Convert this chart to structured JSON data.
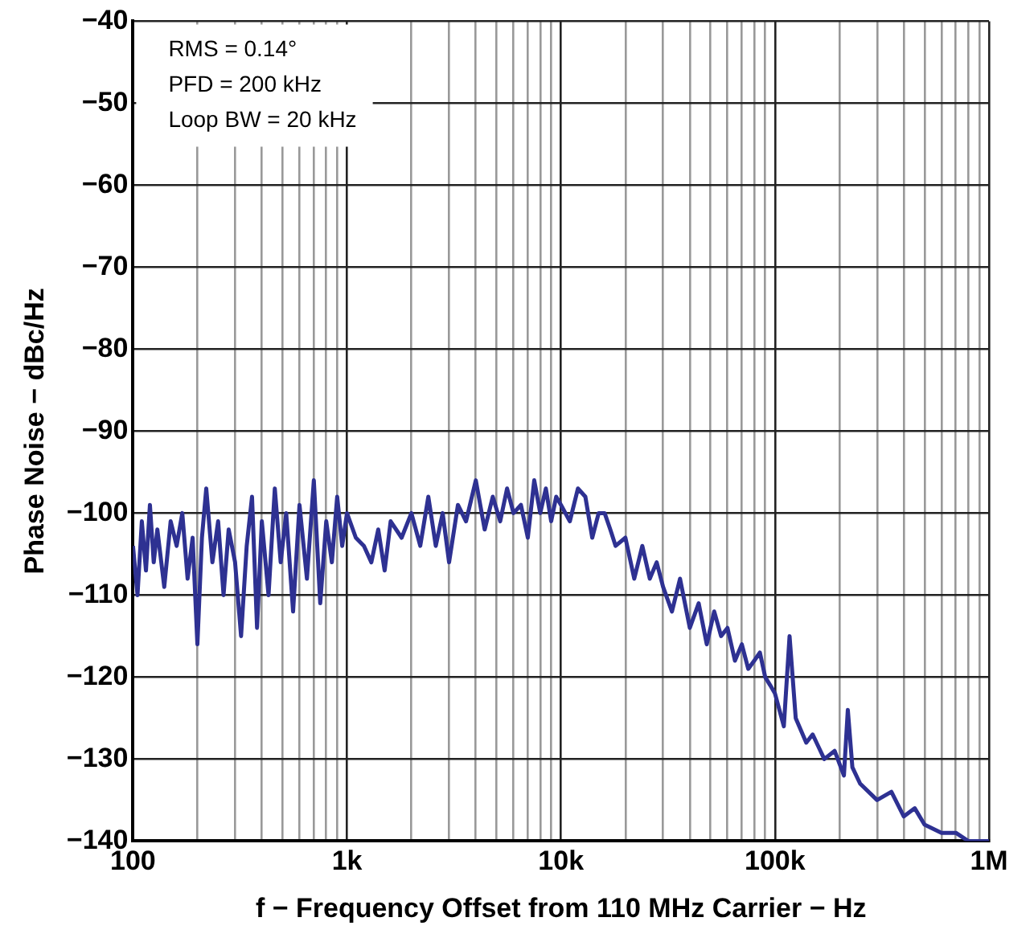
{
  "chart_data": {
    "type": "line",
    "xlabel": "f − Frequency Offset from 110 MHz Carrier − Hz",
    "ylabel": "Phase Noise − dBc/Hz",
    "annotations": [
      "RMS = 0.14°",
      "PFD = 200 kHz",
      "Loop BW = 20 kHz"
    ],
    "log": "x",
    "grid": true,
    "legend": false,
    "marker": "none",
    "line_style": "solid",
    "xlim": [
      100,
      1000000
    ],
    "ylim": [
      -140,
      -40
    ],
    "xticks": [
      {
        "value": 100,
        "label": "100"
      },
      {
        "value": 200,
        "label": null
      },
      {
        "value": 300,
        "label": null
      },
      {
        "value": 400,
        "label": null
      },
      {
        "value": 500,
        "label": null
      },
      {
        "value": 600,
        "label": null
      },
      {
        "value": 700,
        "label": null
      },
      {
        "value": 800,
        "label": null
      },
      {
        "value": 900,
        "label": null
      },
      {
        "value": 1000,
        "label": "1k"
      },
      {
        "value": 2000,
        "label": null
      },
      {
        "value": 3000,
        "label": null
      },
      {
        "value": 4000,
        "label": null
      },
      {
        "value": 5000,
        "label": null
      },
      {
        "value": 6000,
        "label": null
      },
      {
        "value": 7000,
        "label": null
      },
      {
        "value": 8000,
        "label": null
      },
      {
        "value": 9000,
        "label": null
      },
      {
        "value": 10000,
        "label": "10k"
      },
      {
        "value": 20000,
        "label": null
      },
      {
        "value": 30000,
        "label": null
      },
      {
        "value": 40000,
        "label": null
      },
      {
        "value": 50000,
        "label": null
      },
      {
        "value": 60000,
        "label": null
      },
      {
        "value": 70000,
        "label": null
      },
      {
        "value": 80000,
        "label": null
      },
      {
        "value": 90000,
        "label": null
      },
      {
        "value": 100000,
        "label": "100k"
      },
      {
        "value": 200000,
        "label": null
      },
      {
        "value": 300000,
        "label": null
      },
      {
        "value": 400000,
        "label": null
      },
      {
        "value": 500000,
        "label": null
      },
      {
        "value": 600000,
        "label": null
      },
      {
        "value": 700000,
        "label": null
      },
      {
        "value": 800000,
        "label": null
      },
      {
        "value": 900000,
        "label": null
      },
      {
        "value": 1000000,
        "label": "1M"
      }
    ],
    "yticks": [
      {
        "value": -140,
        "label": "−140"
      },
      {
        "value": -130,
        "label": "−130"
      },
      {
        "value": -120,
        "label": "−120"
      },
      {
        "value": -110,
        "label": "−110"
      },
      {
        "value": -100,
        "label": "−100"
      },
      {
        "value": -90,
        "label": "−90"
      },
      {
        "value": -80,
        "label": "−80"
      },
      {
        "value": -70,
        "label": "−70"
      },
      {
        "value": -60,
        "label": "−60"
      },
      {
        "value": -50,
        "label": "−50"
      },
      {
        "value": -40,
        "label": "−40"
      }
    ],
    "x": [
      100,
      105,
      110,
      115,
      120,
      125,
      130,
      140,
      150,
      160,
      170,
      180,
      190,
      200,
      210,
      220,
      235,
      250,
      265,
      280,
      300,
      320,
      340,
      360,
      380,
      400,
      430,
      460,
      490,
      520,
      560,
      600,
      650,
      700,
      750,
      800,
      850,
      900,
      950,
      1000,
      1100,
      1200,
      1300,
      1400,
      1500,
      1600,
      1800,
      2000,
      2200,
      2400,
      2600,
      2800,
      3000,
      3300,
      3600,
      4000,
      4400,
      4800,
      5200,
      5600,
      6000,
      6500,
      7000,
      7500,
      8000,
      8500,
      9000,
      9500,
      10000,
      11000,
      12000,
      13000,
      14000,
      15000,
      16000,
      17000,
      18000,
      20000,
      22000,
      24000,
      26000,
      28000,
      30000,
      33000,
      36000,
      40000,
      44000,
      48000,
      52000,
      56000,
      60000,
      65000,
      70000,
      75000,
      80000,
      85000,
      90000,
      95000,
      100000,
      110000,
      117000,
      125000,
      140000,
      150000,
      170000,
      190000,
      210000,
      219000,
      230000,
      250000,
      300000,
      350000,
      400000,
      450000,
      500000,
      600000,
      700000,
      800000,
      900000,
      1000000
    ],
    "series": [
      {
        "color": "#2e3192",
        "values": [
          -104,
          -110,
          -101,
          -107,
          -99,
          -106,
          -102,
          -109,
          -101,
          -104,
          -100,
          -108,
          -103,
          -116,
          -103,
          -97,
          -106,
          -101,
          -110,
          -102,
          -106,
          -115,
          -104,
          -98,
          -114,
          -101,
          -110,
          -97,
          -106,
          -100,
          -112,
          -99,
          -108,
          -96,
          -111,
          -101,
          -106,
          -98,
          -104,
          -100,
          -103,
          -104,
          -106,
          -102,
          -107,
          -101,
          -103,
          -100,
          -104,
          -98,
          -104,
          -100,
          -106,
          -99,
          -101,
          -96,
          -102,
          -98,
          -101,
          -97,
          -100,
          -99,
          -103,
          -96,
          -100,
          -97,
          -101,
          -98,
          -99,
          -101,
          -97,
          -98,
          -103,
          -100,
          -100,
          -102,
          -104,
          -103,
          -108,
          -104,
          -108,
          -106,
          -109,
          -112,
          -108,
          -114,
          -111,
          -116,
          -112,
          -115,
          -114,
          -118,
          -116,
          -119,
          -118,
          -117,
          -120,
          -121,
          -122,
          -126,
          -115,
          -125,
          -128,
          -127,
          -130,
          -129,
          -132,
          -124,
          -131,
          -133,
          -135,
          -134,
          -137,
          -136,
          -138,
          -139,
          -139,
          -140,
          -140,
          -140
        ]
      }
    ]
  }
}
